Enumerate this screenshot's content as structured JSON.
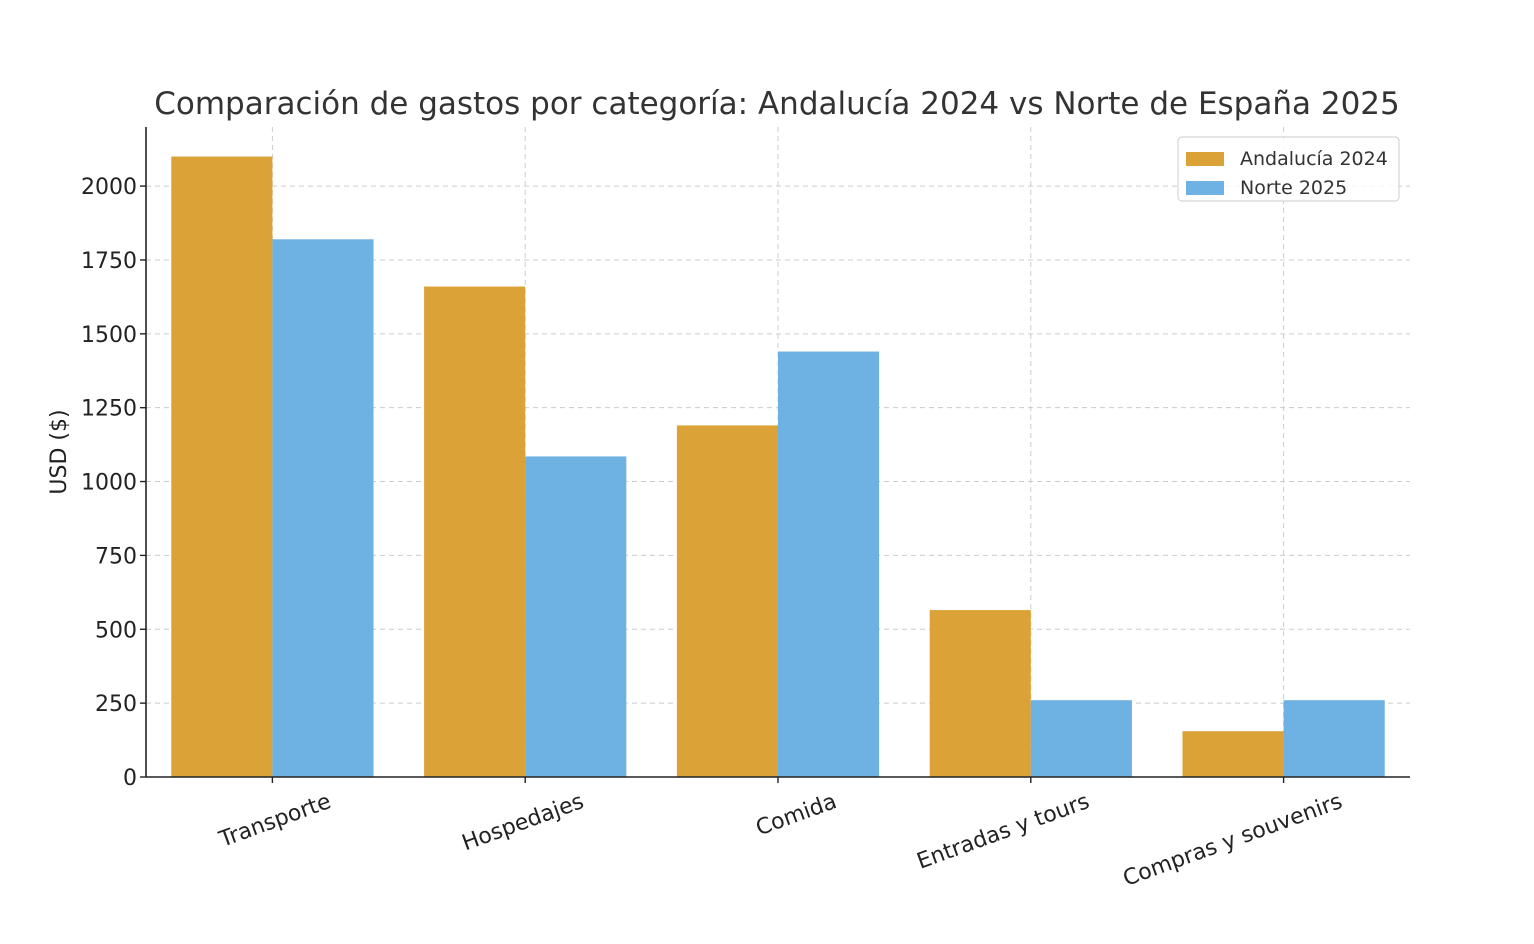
{
  "chart_data": {
    "type": "bar",
    "title": "Comparación de gastos por categoría: Andalucía 2024 vs Norte de España 2025",
    "xlabel": "",
    "ylabel": "USD ($)",
    "categories": [
      "Transporte",
      "Hospedajes",
      "Comida",
      "Entradas y tours",
      "Compras y souvenirs"
    ],
    "series": [
      {
        "name": "Andalucía 2024",
        "color": "#DBA237",
        "values": [
          2100,
          1660,
          1190,
          565,
          155
        ]
      },
      {
        "name": "Norte 2025",
        "color": "#6EB2E3",
        "values": [
          1820,
          1085,
          1440,
          260,
          260
        ]
      }
    ],
    "ylim": [
      0,
      2200
    ],
    "yticks": [
      0,
      250,
      500,
      750,
      1000,
      1250,
      1500,
      1750,
      2000
    ],
    "grid": true,
    "legend_position": "top-right"
  }
}
